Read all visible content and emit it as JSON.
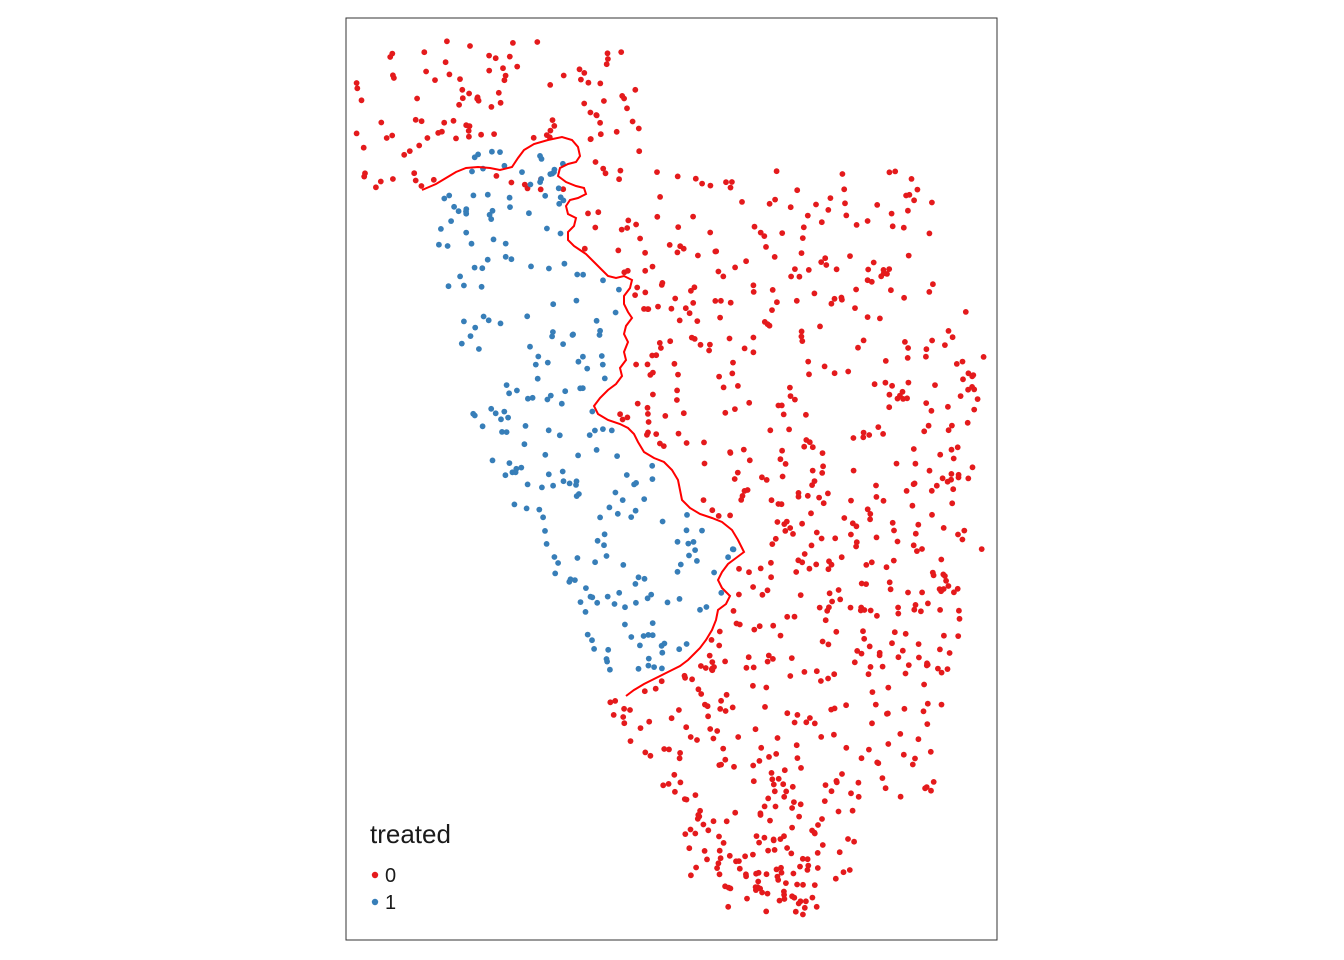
{
  "map": {
    "legend": {
      "title": "treated",
      "items": [
        {
          "label": "0",
          "color": "#E41A1C"
        },
        {
          "label": "1",
          "color": "#377EB8"
        }
      ]
    },
    "boundary_color": "#FF0000",
    "frame_color": "#333333"
  }
}
